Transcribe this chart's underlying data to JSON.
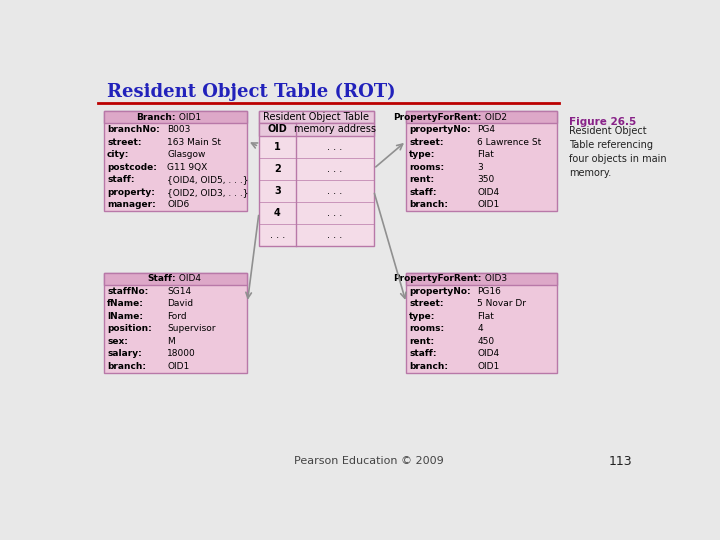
{
  "title": "Resident Object Table (ROT)",
  "title_color": "#2222BB",
  "slide_bg": "#E8E8E8",
  "red_line_color": "#BB0000",
  "figure_label": "Figure 26.5",
  "figure_caption": "Resident Object\nTable referencing\nfour objects in main\nmemory.",
  "footer_text": "Pearson Education © 2009",
  "page_number": "113",
  "box_fill": "#EEC8DC",
  "box_header_fill": "#DDA8C8",
  "box_border": "#B878A8",
  "rot_fill": "#F4DCE8",
  "rot_header_fill": "#E8C8DC",
  "branch_box": {
    "title_bold": "Branch:",
    "title_normal": " OID1",
    "rows": [
      [
        "branchNo:",
        "B003"
      ],
      [
        "street:",
        "163 Main St"
      ],
      [
        "city:",
        "Glasgow"
      ],
      [
        "postcode:",
        "G11 9QX"
      ],
      [
        "staff:",
        "{OID4, OID5, . . .}"
      ],
      [
        "property:",
        "{OID2, OID3, . . .}"
      ],
      [
        "manager:",
        "OID6"
      ]
    ]
  },
  "staff_box": {
    "title_bold": "Staff:",
    "title_normal": " OID4",
    "rows": [
      [
        "staffNo:",
        "SG14"
      ],
      [
        "fName:",
        "David"
      ],
      [
        "lName:",
        "Ford"
      ],
      [
        "position:",
        "Supervisor"
      ],
      [
        "sex:",
        "M"
      ],
      [
        "salary:",
        "18000"
      ],
      [
        "branch:",
        "OID1"
      ]
    ]
  },
  "prop2_box": {
    "title_bold": "PropertyForRent:",
    "title_normal": " OID2",
    "rows": [
      [
        "propertyNo:",
        "PG4"
      ],
      [
        "street:",
        "6 Lawrence St"
      ],
      [
        "type:",
        "Flat"
      ],
      [
        "rooms:",
        "3"
      ],
      [
        "rent:",
        "350"
      ],
      [
        "staff:",
        "OID4"
      ],
      [
        "branch:",
        "OID1"
      ]
    ]
  },
  "prop3_box": {
    "title_bold": "PropertyForRent:",
    "title_normal": " OID3",
    "rows": [
      [
        "propertyNo:",
        "PG16"
      ],
      [
        "street:",
        "5 Novar Dr"
      ],
      [
        "type:",
        "Flat"
      ],
      [
        "rooms:",
        "4"
      ],
      [
        "rent:",
        "450"
      ],
      [
        "staff:",
        "OID4"
      ],
      [
        "branch:",
        "OID1"
      ]
    ]
  },
  "rot_table": {
    "title": "Resident Object Table",
    "col1": "OID",
    "col2": "memory address",
    "rows": [
      [
        "1",
        ". . ."
      ],
      [
        "2",
        ". . ."
      ],
      [
        "3",
        ". . ."
      ],
      [
        "4",
        ". . ."
      ],
      [
        ". . .",
        ". . ."
      ]
    ]
  }
}
